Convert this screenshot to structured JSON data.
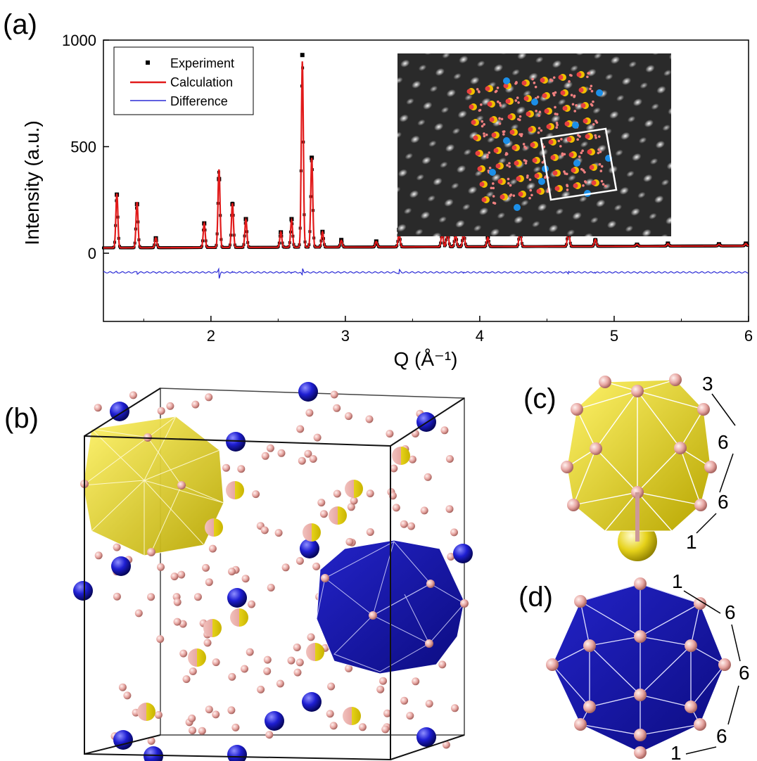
{
  "panels": {
    "a": "(a)",
    "b": "(b)",
    "c": "(c)",
    "d": "(d)"
  },
  "colors": {
    "experiment": "#000000",
    "calculation": "#e11a1a",
    "difference": "#2b2bd6",
    "pink_atom": "#e7a6a2",
    "yellow_cluster": "#e6d21a",
    "blue_cluster": "#1a1ab4"
  },
  "chart_data": {
    "type": "line",
    "xlabel": "Q (Å⁻¹)",
    "ylabel": "Intensity (a.u.)",
    "xlim": [
      1.2,
      6.0
    ],
    "ylim": [
      -320,
      1000
    ],
    "x_ticks": [
      "2",
      "3",
      "4",
      "5",
      "6"
    ],
    "y_ticks": [
      "0",
      "500",
      "1000"
    ],
    "legend": {
      "placement": "top-left",
      "entries": [
        "Experiment",
        "Calculation",
        "Difference"
      ]
    },
    "background": 0,
    "difference_offset": -90,
    "peaks": [
      {
        "q": 1.3,
        "calc": 280,
        "exp": 275
      },
      {
        "q": 1.45,
        "calc": 240,
        "exp": 230
      },
      {
        "q": 1.59,
        "calc": 72,
        "exp": 70
      },
      {
        "q": 1.95,
        "calc": 140,
        "exp": 140
      },
      {
        "q": 2.06,
        "calc": 393,
        "exp": 348
      },
      {
        "q": 2.16,
        "calc": 235,
        "exp": 230
      },
      {
        "q": 2.26,
        "calc": 158,
        "exp": 160
      },
      {
        "q": 2.52,
        "calc": 100,
        "exp": 98
      },
      {
        "q": 2.6,
        "calc": 155,
        "exp": 160
      },
      {
        "q": 2.68,
        "calc": 900,
        "exp": 930
      },
      {
        "q": 2.75,
        "calc": 448,
        "exp": 448
      },
      {
        "q": 2.83,
        "calc": 100,
        "exp": 100
      },
      {
        "q": 2.97,
        "calc": 60,
        "exp": 62
      },
      {
        "q": 3.23,
        "calc": 55,
        "exp": 55
      },
      {
        "q": 3.4,
        "calc": 92,
        "exp": 110
      },
      {
        "q": 3.72,
        "calc": 95,
        "exp": 95
      },
      {
        "q": 3.76,
        "calc": 110,
        "exp": 110
      },
      {
        "q": 3.82,
        "calc": 90,
        "exp": 90
      },
      {
        "q": 3.88,
        "calc": 100,
        "exp": 105
      },
      {
        "q": 4.06,
        "calc": 75,
        "exp": 78
      },
      {
        "q": 4.3,
        "calc": 115,
        "exp": 115
      },
      {
        "q": 4.66,
        "calc": 118,
        "exp": 130
      },
      {
        "q": 4.86,
        "calc": 65,
        "exp": 60
      },
      {
        "q": 5.17,
        "calc": 42,
        "exp": 40
      },
      {
        "q": 5.4,
        "calc": 45,
        "exp": 45
      },
      {
        "q": 5.78,
        "calc": 42,
        "exp": 42
      },
      {
        "q": 5.98,
        "calc": 45,
        "exp": 45
      }
    ]
  },
  "annotations_c": [
    "3",
    "6",
    "6",
    "1"
  ],
  "annotations_d": [
    "1",
    "6",
    "6",
    "6",
    "1"
  ]
}
